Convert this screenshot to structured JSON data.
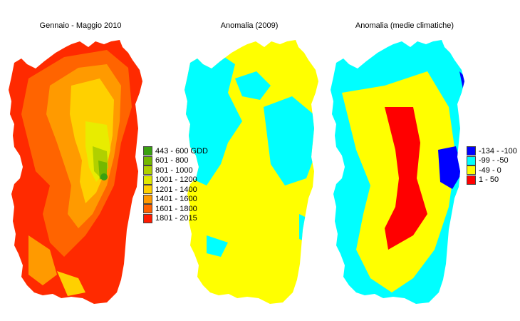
{
  "panels": [
    {
      "title": "Gennaio - Maggio 2010",
      "legend": [
        {
          "label": "443 - 600 GDD",
          "color": "#3aa010"
        },
        {
          "label": "601 - 800",
          "color": "#74b800"
        },
        {
          "label": "801 - 1000",
          "color": "#b0d000"
        },
        {
          "label": "1001 - 1200",
          "color": "#e0e800"
        },
        {
          "label": "1201 - 1400",
          "color": "#ffd000"
        },
        {
          "label": "1401 - 1600",
          "color": "#ff9a00"
        },
        {
          "label": "1601 - 1800",
          "color": "#ff6000"
        },
        {
          "label": "1801 - 2015",
          "color": "#ff1a00"
        }
      ]
    },
    {
      "title": "Anomalia (2009)",
      "colors": {
        "positive": "#ffff00",
        "negative": "#00ffff"
      }
    },
    {
      "title": "Anomalia (medie climatiche)",
      "legend": [
        {
          "label": "-134 - -100",
          "color": "#0000ff"
        },
        {
          "label": "-99 - -50",
          "color": "#00ffff"
        },
        {
          "label": "-49 - 0",
          "color": "#ffff00"
        },
        {
          "label": "1 - 50",
          "color": "#ff0000"
        }
      ]
    }
  ]
}
